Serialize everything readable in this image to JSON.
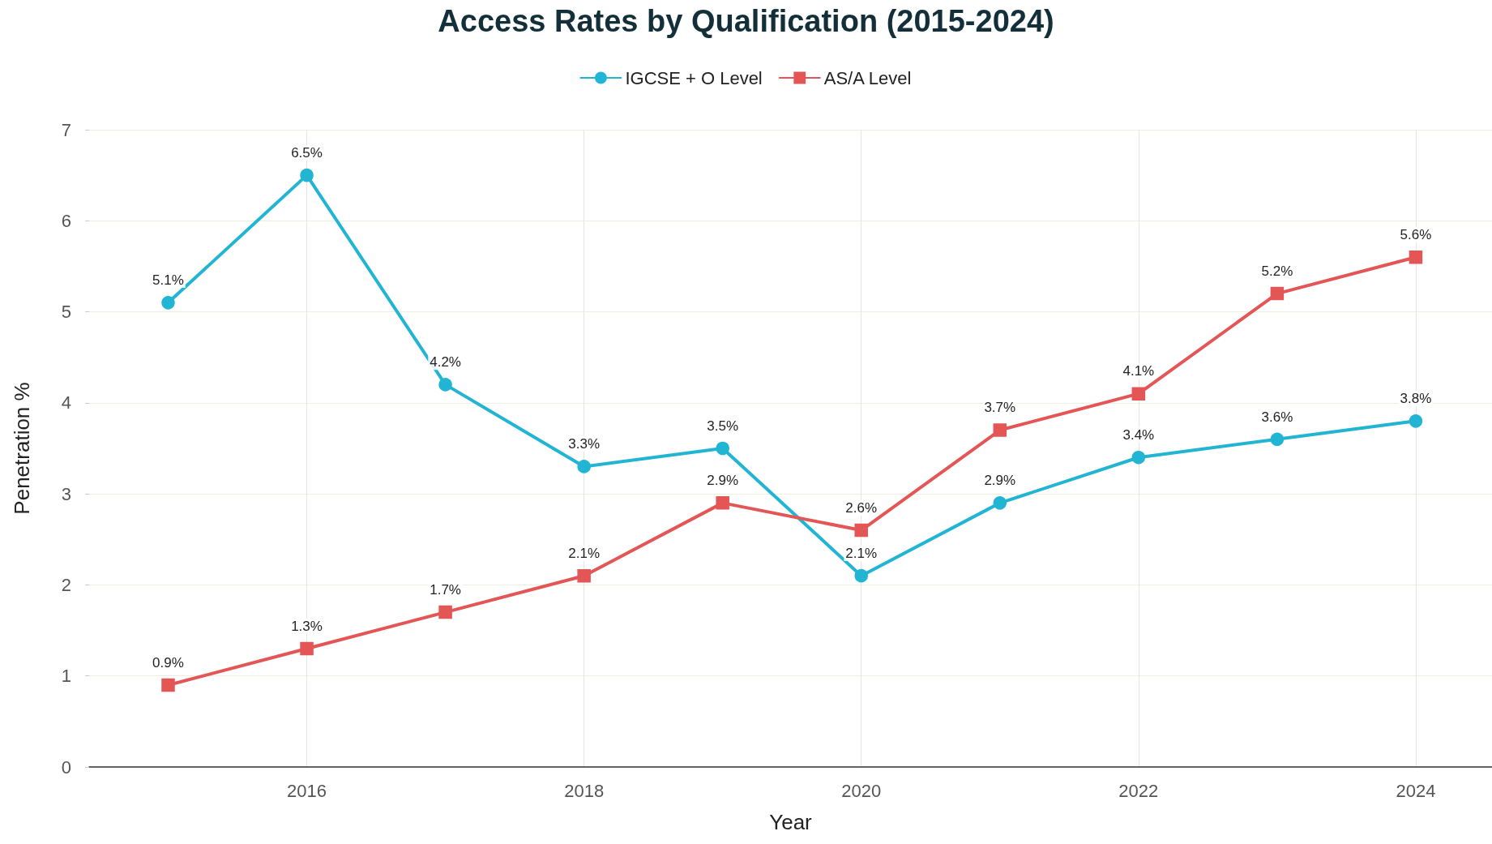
{
  "chart_data": {
    "type": "line",
    "title": "Access Rates by Qualification (2015-2024)",
    "xlabel": "Year",
    "ylabel": "Penetration %",
    "x": [
      2015,
      2016,
      2017,
      2018,
      2019,
      2020,
      2021,
      2022,
      2023,
      2024
    ],
    "series": [
      {
        "name": "IGCSE + O Level",
        "color": "#22b5d3",
        "marker": "circle",
        "values": [
          5.1,
          6.5,
          4.2,
          3.3,
          3.5,
          2.1,
          2.9,
          3.4,
          3.6,
          3.8
        ],
        "value_labels": [
          "5.1%",
          "6.5%",
          "4.2%",
          "3.3%",
          "3.5%",
          "2.1%",
          "2.9%",
          "3.4%",
          "3.6%",
          "3.8%"
        ]
      },
      {
        "name": "AS/A Level",
        "color": "#e45656",
        "marker": "square",
        "values": [
          0.9,
          1.3,
          1.7,
          2.1,
          2.9,
          2.6,
          3.7,
          4.1,
          5.2,
          5.6
        ],
        "value_labels": [
          "0.9%",
          "1.3%",
          "1.7%",
          "2.1%",
          "2.9%",
          "2.6%",
          "3.7%",
          "4.1%",
          "5.2%",
          "5.6%"
        ]
      }
    ],
    "xlim": [
      2014.43,
      2024.55
    ],
    "xticks": [
      2016,
      2018,
      2020,
      2022,
      2024
    ],
    "ylim": [
      0,
      7
    ],
    "yticks": [
      0,
      1,
      2,
      3,
      4,
      5,
      6,
      7
    ],
    "grid": true,
    "legend": "top",
    "line_style": "solid"
  }
}
